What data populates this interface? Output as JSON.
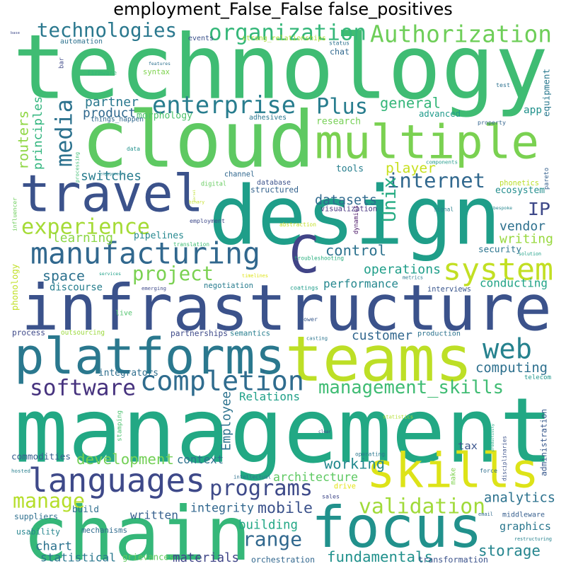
{
  "title": "employment_False_False false_positives",
  "words": [
    {
      "text": "technology",
      "color": "#3fbc73"
    },
    {
      "text": "management",
      "color": "#22a884"
    },
    {
      "text": "infrastructure",
      "color": "#3b528b"
    },
    {
      "text": "design",
      "color": "#1f9e89"
    },
    {
      "text": "cloud",
      "color": "#5ec962"
    },
    {
      "text": "platforms",
      "color": "#2a788e"
    },
    {
      "text": "teams",
      "color": "#bddf26"
    },
    {
      "text": "multiple",
      "color": "#7ad151"
    },
    {
      "text": "chain",
      "color": "#35b779"
    },
    {
      "text": "focus",
      "color": "#21918c"
    },
    {
      "text": "travel",
      "color": "#3b528b"
    },
    {
      "text": "skills",
      "color": "#dde318"
    },
    {
      "text": "C",
      "color": "#414487"
    },
    {
      "text": "system",
      "color": "#c2df23"
    },
    {
      "text": "manufacturing",
      "color": "#31688e"
    },
    {
      "text": "languages",
      "color": "#3e4989"
    },
    {
      "text": "enterprise",
      "color": "#287d8e"
    },
    {
      "text": "organization",
      "color": "#35b779"
    },
    {
      "text": "Authorization",
      "color": "#6ece58"
    },
    {
      "text": "technologies",
      "color": "#2a788e"
    },
    {
      "text": "completion",
      "color": "#2f6c8e"
    },
    {
      "text": "web",
      "color": "#26828e"
    },
    {
      "text": "internet",
      "color": "#31688e"
    },
    {
      "text": "experience",
      "color": "#a5db36"
    },
    {
      "text": "project",
      "color": "#7ad151"
    },
    {
      "text": "programs",
      "color": "#3e4a89"
    },
    {
      "text": "software",
      "color": "#46327e"
    },
    {
      "text": "validation",
      "color": "#a0da39"
    },
    {
      "text": "Plus",
      "color": "#287d8e"
    },
    {
      "text": "media",
      "color": "#2c728e"
    },
    {
      "text": "range",
      "color": "#31688e"
    },
    {
      "text": "management_skills",
      "color": "#3fbc73"
    },
    {
      "text": "manage",
      "color": "#b5de2b"
    },
    {
      "text": "analytics",
      "color": "#2c728e"
    },
    {
      "text": "operations",
      "color": "#1f9e89"
    },
    {
      "text": "Unix",
      "color": "#25ab82"
    },
    {
      "text": "IP",
      "color": "#3e4989"
    },
    {
      "text": "partner",
      "color": "#2a788e"
    },
    {
      "text": "product",
      "color": "#30698e"
    },
    {
      "text": "switches",
      "color": "#287c8e"
    },
    {
      "text": "general",
      "color": "#34b679"
    },
    {
      "text": "datasets",
      "color": "#306a8e"
    },
    {
      "text": "player",
      "color": "#c8e020"
    },
    {
      "text": "tools",
      "color": "#277f8e"
    },
    {
      "text": "research",
      "color": "#75d054"
    },
    {
      "text": "vendor",
      "color": "#2d708e"
    },
    {
      "text": "writing",
      "color": "#98d83e"
    },
    {
      "text": "control",
      "color": "#2c728e"
    },
    {
      "text": "space",
      "color": "#2c718e"
    },
    {
      "text": "performance",
      "color": "#24878e"
    },
    {
      "text": "conducting",
      "color": "#20a386"
    },
    {
      "text": "computing",
      "color": "#2d708e"
    },
    {
      "text": "customer",
      "color": "#31678e"
    },
    {
      "text": "mobile",
      "color": "#3b528b"
    },
    {
      "text": "working",
      "color": "#23898e"
    },
    {
      "text": "architecture",
      "color": "#5ec962"
    },
    {
      "text": "context",
      "color": "#2d718e"
    },
    {
      "text": "development",
      "color": "#73d056"
    },
    {
      "text": "written",
      "color": "#355f8d"
    },
    {
      "text": "integrity",
      "color": "#31678e"
    },
    {
      "text": "building",
      "color": "#22a785"
    },
    {
      "text": "graphics",
      "color": "#2a778e"
    },
    {
      "text": "storage",
      "color": "#25858e"
    },
    {
      "text": "fundamentals",
      "color": "#21918c"
    },
    {
      "text": "chart",
      "color": "#2c728e"
    },
    {
      "text": "statistical",
      "color": "#2a778e"
    },
    {
      "text": "materials",
      "color": "#404688"
    },
    {
      "text": "learning",
      "color": "#8bd646"
    },
    {
      "text": "pipelines",
      "color": "#24878e"
    },
    {
      "text": "Relations",
      "color": "#1fa088"
    },
    {
      "text": "Employee",
      "color": "#2c728e"
    },
    {
      "text": "principles",
      "color": "#2fb47c"
    },
    {
      "text": "routers",
      "color": "#8fd744"
    },
    {
      "text": "administration",
      "color": "#38588c"
    },
    {
      "text": "discourse",
      "color": "#277e8e"
    },
    {
      "text": "integrators",
      "color": "#2e6e8e"
    },
    {
      "text": "suppliers",
      "color": "#2e6f8e"
    },
    {
      "text": "commodities",
      "color": "#355e8d"
    },
    {
      "text": "usability",
      "color": "#25858e"
    },
    {
      "text": "orchestration",
      "color": "#31678e"
    },
    {
      "text": "morphology",
      "color": "#4cc26c"
    },
    {
      "text": "syntax",
      "color": "#7fd34e"
    },
    {
      "text": "adhesives",
      "color": "#2a768e"
    },
    {
      "text": "advanced",
      "color": "#1f9a8a"
    },
    {
      "text": "app",
      "color": "#21918c"
    },
    {
      "text": "equipment",
      "color": "#2a788e"
    },
    {
      "text": "channel",
      "color": "#31678e"
    },
    {
      "text": "digital",
      "color": "#65cb5e"
    },
    {
      "text": "ecosystem",
      "color": "#228d8d"
    },
    {
      "text": "security",
      "color": "#2b748e"
    },
    {
      "text": "phonetics",
      "color": "#bade28"
    },
    {
      "text": "structured",
      "color": "#33628d"
    },
    {
      "text": "coatings",
      "color": "#1e9c89"
    },
    {
      "text": "negotiation",
      "color": "#287c8e"
    },
    {
      "text": "interviews",
      "color": "#39558c"
    },
    {
      "text": "semantics",
      "color": "#277e8e"
    },
    {
      "text": "partnerships",
      "color": "#3e4a89"
    },
    {
      "text": "production",
      "color": "#2c738e"
    },
    {
      "text": "telecom",
      "color": "#1f968b"
    },
    {
      "text": "transformation",
      "color": "#3b528b"
    },
    {
      "text": "restructuring",
      "color": "#26828e"
    },
    {
      "text": "email",
      "color": "#306a8e"
    },
    {
      "text": "middleware",
      "color": "#355e8d"
    },
    {
      "text": "sales",
      "color": "#3f4788"
    },
    {
      "text": "mechanisms",
      "color": "#2f6b8e"
    },
    {
      "text": "build",
      "color": "#2e6e8e"
    },
    {
      "text": "grievances",
      "color": "#63cb5f"
    },
    {
      "text": "intellectual",
      "color": "#2d708e"
    },
    {
      "text": "force",
      "color": "#2e6e8e"
    },
    {
      "text": "tax",
      "color": "#3a548c"
    },
    {
      "text": "drive",
      "color": "#e5e419"
    },
    {
      "text": "make",
      "color": "#7fd34e"
    },
    {
      "text": "disciplinaries",
      "color": "#3b528b"
    },
    {
      "text": "productivity",
      "color": "#22a884"
    },
    {
      "text": "operating",
      "color": "#2a788e"
    },
    {
      "text": "clear",
      "color": "#3d4d8a"
    },
    {
      "text": "hosted",
      "color": "#277f8e"
    },
    {
      "text": "stamping",
      "color": "#4ac16d"
    },
    {
      "text": "statistics",
      "color": "#b2dd2d"
    },
    {
      "text": "casting",
      "color": "#2b758e"
    },
    {
      "text": "power",
      "color": "#37598c"
    },
    {
      "text": "live",
      "color": "#4ec36b"
    },
    {
      "text": "process",
      "color": "#3e4989"
    },
    {
      "text": "outsourcing",
      "color": "#9bd93c"
    },
    {
      "text": "phonology",
      "color": "#c0df25"
    },
    {
      "text": "influencer",
      "color": "#6ccd5a"
    },
    {
      "text": "employment",
      "color": "#3e4989"
    },
    {
      "text": "translation",
      "color": "#3fbc73"
    },
    {
      "text": "abstraction",
      "color": "#c2df23"
    },
    {
      "text": "troubleshooting",
      "color": "#29af7f"
    },
    {
      "text": "dynamics",
      "color": "#471365"
    },
    {
      "text": "services",
      "color": "#1fa188"
    },
    {
      "text": "emerging",
      "color": "#3e4989"
    },
    {
      "text": "timelines",
      "color": "#dde318"
    },
    {
      "text": "metrics",
      "color": "#2a788e"
    },
    {
      "text": "solution",
      "color": "#1fa088"
    },
    {
      "text": "bespoke",
      "color": "#24868e"
    },
    {
      "text": "signal",
      "color": "#26828e"
    },
    {
      "text": "visualization",
      "color": "#46337f"
    },
    {
      "text": "kernel",
      "color": "#bade28"
    },
    {
      "text": "binary",
      "color": "#c2df23"
    },
    {
      "text": "database",
      "color": "#3b528b"
    },
    {
      "text": "pareto",
      "color": "#35608d"
    },
    {
      "text": "components",
      "color": "#1f9a8a"
    },
    {
      "text": "property",
      "color": "#33638d"
    },
    {
      "text": "engagements",
      "color": "#26828e"
    },
    {
      "text": "processing",
      "color": "#3fbc73"
    },
    {
      "text": "data",
      "color": "#21918c"
    },
    {
      "text": "features",
      "color": "#2d718e"
    },
    {
      "text": "things_happen",
      "color": "#31688e"
    },
    {
      "text": "firmware",
      "color": "#35b779"
    },
    {
      "text": "bar",
      "color": "#3e4989"
    },
    {
      "text": "automation",
      "color": "#2c718e"
    },
    {
      "text": "base",
      "color": "#3e4989"
    },
    {
      "text": "events",
      "color": "#3b528b"
    },
    {
      "text": "strong_relationships",
      "color": "#a8db34"
    },
    {
      "text": "status",
      "color": "#2c718e"
    },
    {
      "text": "chat",
      "color": "#31688e"
    },
    {
      "text": "test",
      "color": "#2c718e"
    }
  ]
}
